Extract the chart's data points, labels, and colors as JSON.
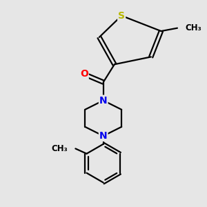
{
  "bg_color": "#e6e6e6",
  "bond_color": "#000000",
  "bond_width": 1.6,
  "atom_colors": {
    "S": "#b8b800",
    "O": "#ff0000",
    "N": "#0000ee",
    "C": "#000000"
  },
  "font_size_atom": 10,
  "font_size_methyl": 8.5,
  "figsize": [
    3.0,
    3.0
  ],
  "dpi": 100,
  "xlim": [
    0,
    10
  ],
  "ylim": [
    0,
    10
  ]
}
